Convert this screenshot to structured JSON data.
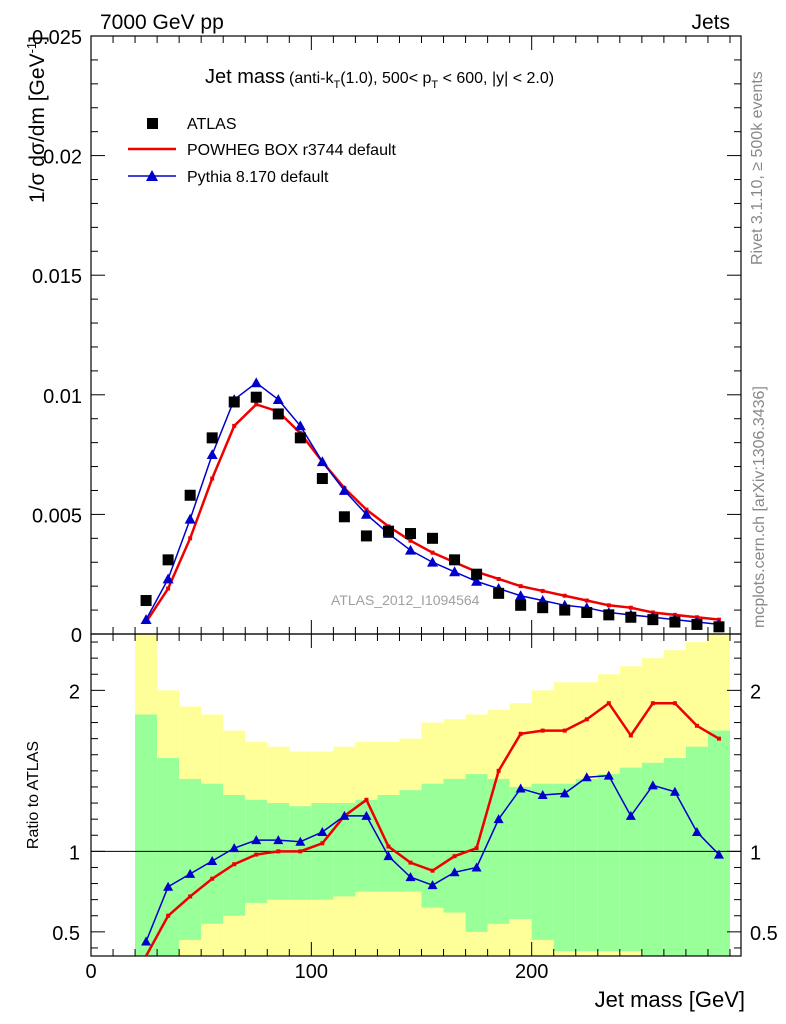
{
  "header": {
    "left": "7000 GeV pp",
    "right": "Jets"
  },
  "title": {
    "main": "Jet mass",
    "prefix": "(anti-k",
    "sub1": "T",
    "mid": "(1.0), 500< p",
    "sub2": "T",
    "suffix": " < 600, |y| < 2.0)"
  },
  "side_labels": {
    "rivet": "Rivet 3.1.10, ≥ 500k events",
    "mcplots": "mcplots.cern.ch [arXiv:1306.3436]"
  },
  "watermark": "ATLAS_2012_I1094564",
  "chart_data": [
    {
      "type": "scatter",
      "panel": "main",
      "xlabel": "Jet mass [GeV]",
      "ylabel_parts": {
        "main": "1/σ dσ/dm [GeV",
        "sup": "-1",
        "end": "]"
      },
      "xlim": [
        0,
        295
      ],
      "ylim": [
        0,
        0.025
      ],
      "y_ticks": [
        0,
        0.005,
        0.01,
        0.015,
        0.02,
        0.025
      ],
      "y_tick_labels": [
        "0",
        "0.005",
        "0.01",
        "0.015",
        "0.02",
        "0.025"
      ],
      "legend_position": "top-left",
      "x": [
        25,
        35,
        45,
        55,
        65,
        75,
        85,
        95,
        105,
        115,
        125,
        135,
        145,
        155,
        165,
        175,
        185,
        195,
        205,
        215,
        225,
        235,
        245,
        255,
        265,
        275,
        285
      ],
      "series": [
        {
          "name": "ATLAS",
          "color": "#000000",
          "marker": "square",
          "values": [
            0.0014,
            0.0031,
            0.0058,
            0.0082,
            0.0097,
            0.0099,
            0.0092,
            0.0082,
            0.0065,
            0.0049,
            0.0041,
            0.0043,
            0.0042,
            0.004,
            0.0031,
            0.0025,
            0.0017,
            0.0012,
            0.0011,
            0.001,
            0.0009,
            0.0008,
            0.0007,
            0.0006,
            0.0005,
            0.0004,
            0.0003
          ]
        },
        {
          "name": "POWHEG BOX r3744 default",
          "color": "#ee0000",
          "marker": "line",
          "values": [
            0.0005,
            0.0019,
            0.004,
            0.0065,
            0.0087,
            0.0096,
            0.0093,
            0.0084,
            0.0072,
            0.0061,
            0.0052,
            0.0045,
            0.0039,
            0.0034,
            0.003,
            0.0026,
            0.0023,
            0.002,
            0.0018,
            0.0016,
            0.0014,
            0.0012,
            0.0011,
            0.0009,
            0.0008,
            0.0007,
            0.0006
          ]
        },
        {
          "name": "Pythia 8.170 default",
          "color": "#0000cc",
          "marker": "triangle",
          "values": [
            0.0006,
            0.0023,
            0.0048,
            0.0075,
            0.0098,
            0.0105,
            0.0098,
            0.0087,
            0.0072,
            0.006,
            0.005,
            0.0042,
            0.0035,
            0.003,
            0.0026,
            0.0022,
            0.0019,
            0.0016,
            0.0014,
            0.0012,
            0.0011,
            0.0009,
            0.0008,
            0.0007,
            0.0006,
            0.0005,
            0.0004
          ]
        }
      ]
    },
    {
      "type": "line",
      "panel": "ratio",
      "xlabel": "Jet mass [GeV]",
      "ylabel": "Ratio to ATLAS",
      "xlim": [
        0,
        295
      ],
      "ylim": [
        0.35,
        2.35
      ],
      "x_ticks": [
        0,
        100,
        200
      ],
      "x_tick_labels": [
        "0",
        "100",
        "200"
      ],
      "y_ticks": [
        0.5,
        1,
        2
      ],
      "y_tick_labels": [
        "0.5",
        "1",
        "2"
      ],
      "bin_edges": [
        20,
        30,
        40,
        50,
        60,
        70,
        80,
        90,
        100,
        110,
        120,
        130,
        140,
        150,
        160,
        170,
        180,
        190,
        200,
        210,
        220,
        230,
        240,
        250,
        260,
        270,
        280,
        290
      ],
      "band_colors": {
        "inner": "#99ff99",
        "outer": "#ffff99"
      },
      "band_inner_low": [
        0.0,
        0.3,
        0.45,
        0.55,
        0.6,
        0.68,
        0.7,
        0.7,
        0.7,
        0.72,
        0.75,
        0.75,
        0.75,
        0.65,
        0.62,
        0.5,
        0.55,
        0.58,
        0.45,
        0.38,
        0.38,
        0.38,
        0.38,
        0.35,
        0.35,
        0.35,
        0.35
      ],
      "band_inner_high": [
        1.85,
        1.58,
        1.45,
        1.42,
        1.35,
        1.32,
        1.3,
        1.28,
        1.3,
        1.3,
        1.32,
        1.35,
        1.38,
        1.42,
        1.45,
        1.48,
        1.45,
        1.4,
        1.42,
        1.42,
        1.45,
        1.48,
        1.52,
        1.55,
        1.58,
        1.65,
        1.75
      ],
      "band_outer_low": [
        0.0,
        0.0,
        0.0,
        0.0,
        0.0,
        0.0,
        0.0,
        0.0,
        0.0,
        0.0,
        0.0,
        0.0,
        0.0,
        0.0,
        0.0,
        0.0,
        0.0,
        0.0,
        0.0,
        0.0,
        0.0,
        0.0,
        0.0,
        0.0,
        0.0,
        0.0,
        0.0
      ],
      "band_outer_high": [
        2.35,
        2.0,
        1.9,
        1.85,
        1.75,
        1.68,
        1.65,
        1.62,
        1.62,
        1.65,
        1.68,
        1.68,
        1.7,
        1.8,
        1.82,
        1.85,
        1.88,
        1.92,
        2.0,
        2.05,
        2.05,
        2.1,
        2.15,
        2.2,
        2.25,
        2.3,
        2.35
      ],
      "x": [
        25,
        35,
        45,
        55,
        65,
        75,
        85,
        95,
        105,
        115,
        125,
        135,
        145,
        155,
        165,
        175,
        185,
        195,
        205,
        215,
        225,
        235,
        245,
        255,
        265,
        275,
        285
      ],
      "series": [
        {
          "name": "POWHEG BOX r3744 default",
          "color": "#ee0000",
          "marker": "dot",
          "values": [
            0.33,
            0.6,
            0.72,
            0.83,
            0.92,
            0.98,
            1.0,
            1.0,
            1.05,
            1.22,
            1.32,
            1.03,
            0.93,
            0.88,
            0.97,
            1.02,
            1.5,
            1.73,
            1.75,
            1.75,
            1.82,
            1.92,
            1.72,
            1.92,
            1.92,
            1.78,
            1.7
          ]
        },
        {
          "name": "Pythia 8.170 default",
          "color": "#0000cc",
          "marker": "triangle",
          "values": [
            0.44,
            0.78,
            0.86,
            0.94,
            1.02,
            1.07,
            1.07,
            1.06,
            1.12,
            1.22,
            1.22,
            0.97,
            0.84,
            0.79,
            0.87,
            0.9,
            1.2,
            1.39,
            1.35,
            1.36,
            1.46,
            1.47,
            1.22,
            1.41,
            1.37,
            1.12,
            0.98
          ]
        }
      ]
    }
  ]
}
